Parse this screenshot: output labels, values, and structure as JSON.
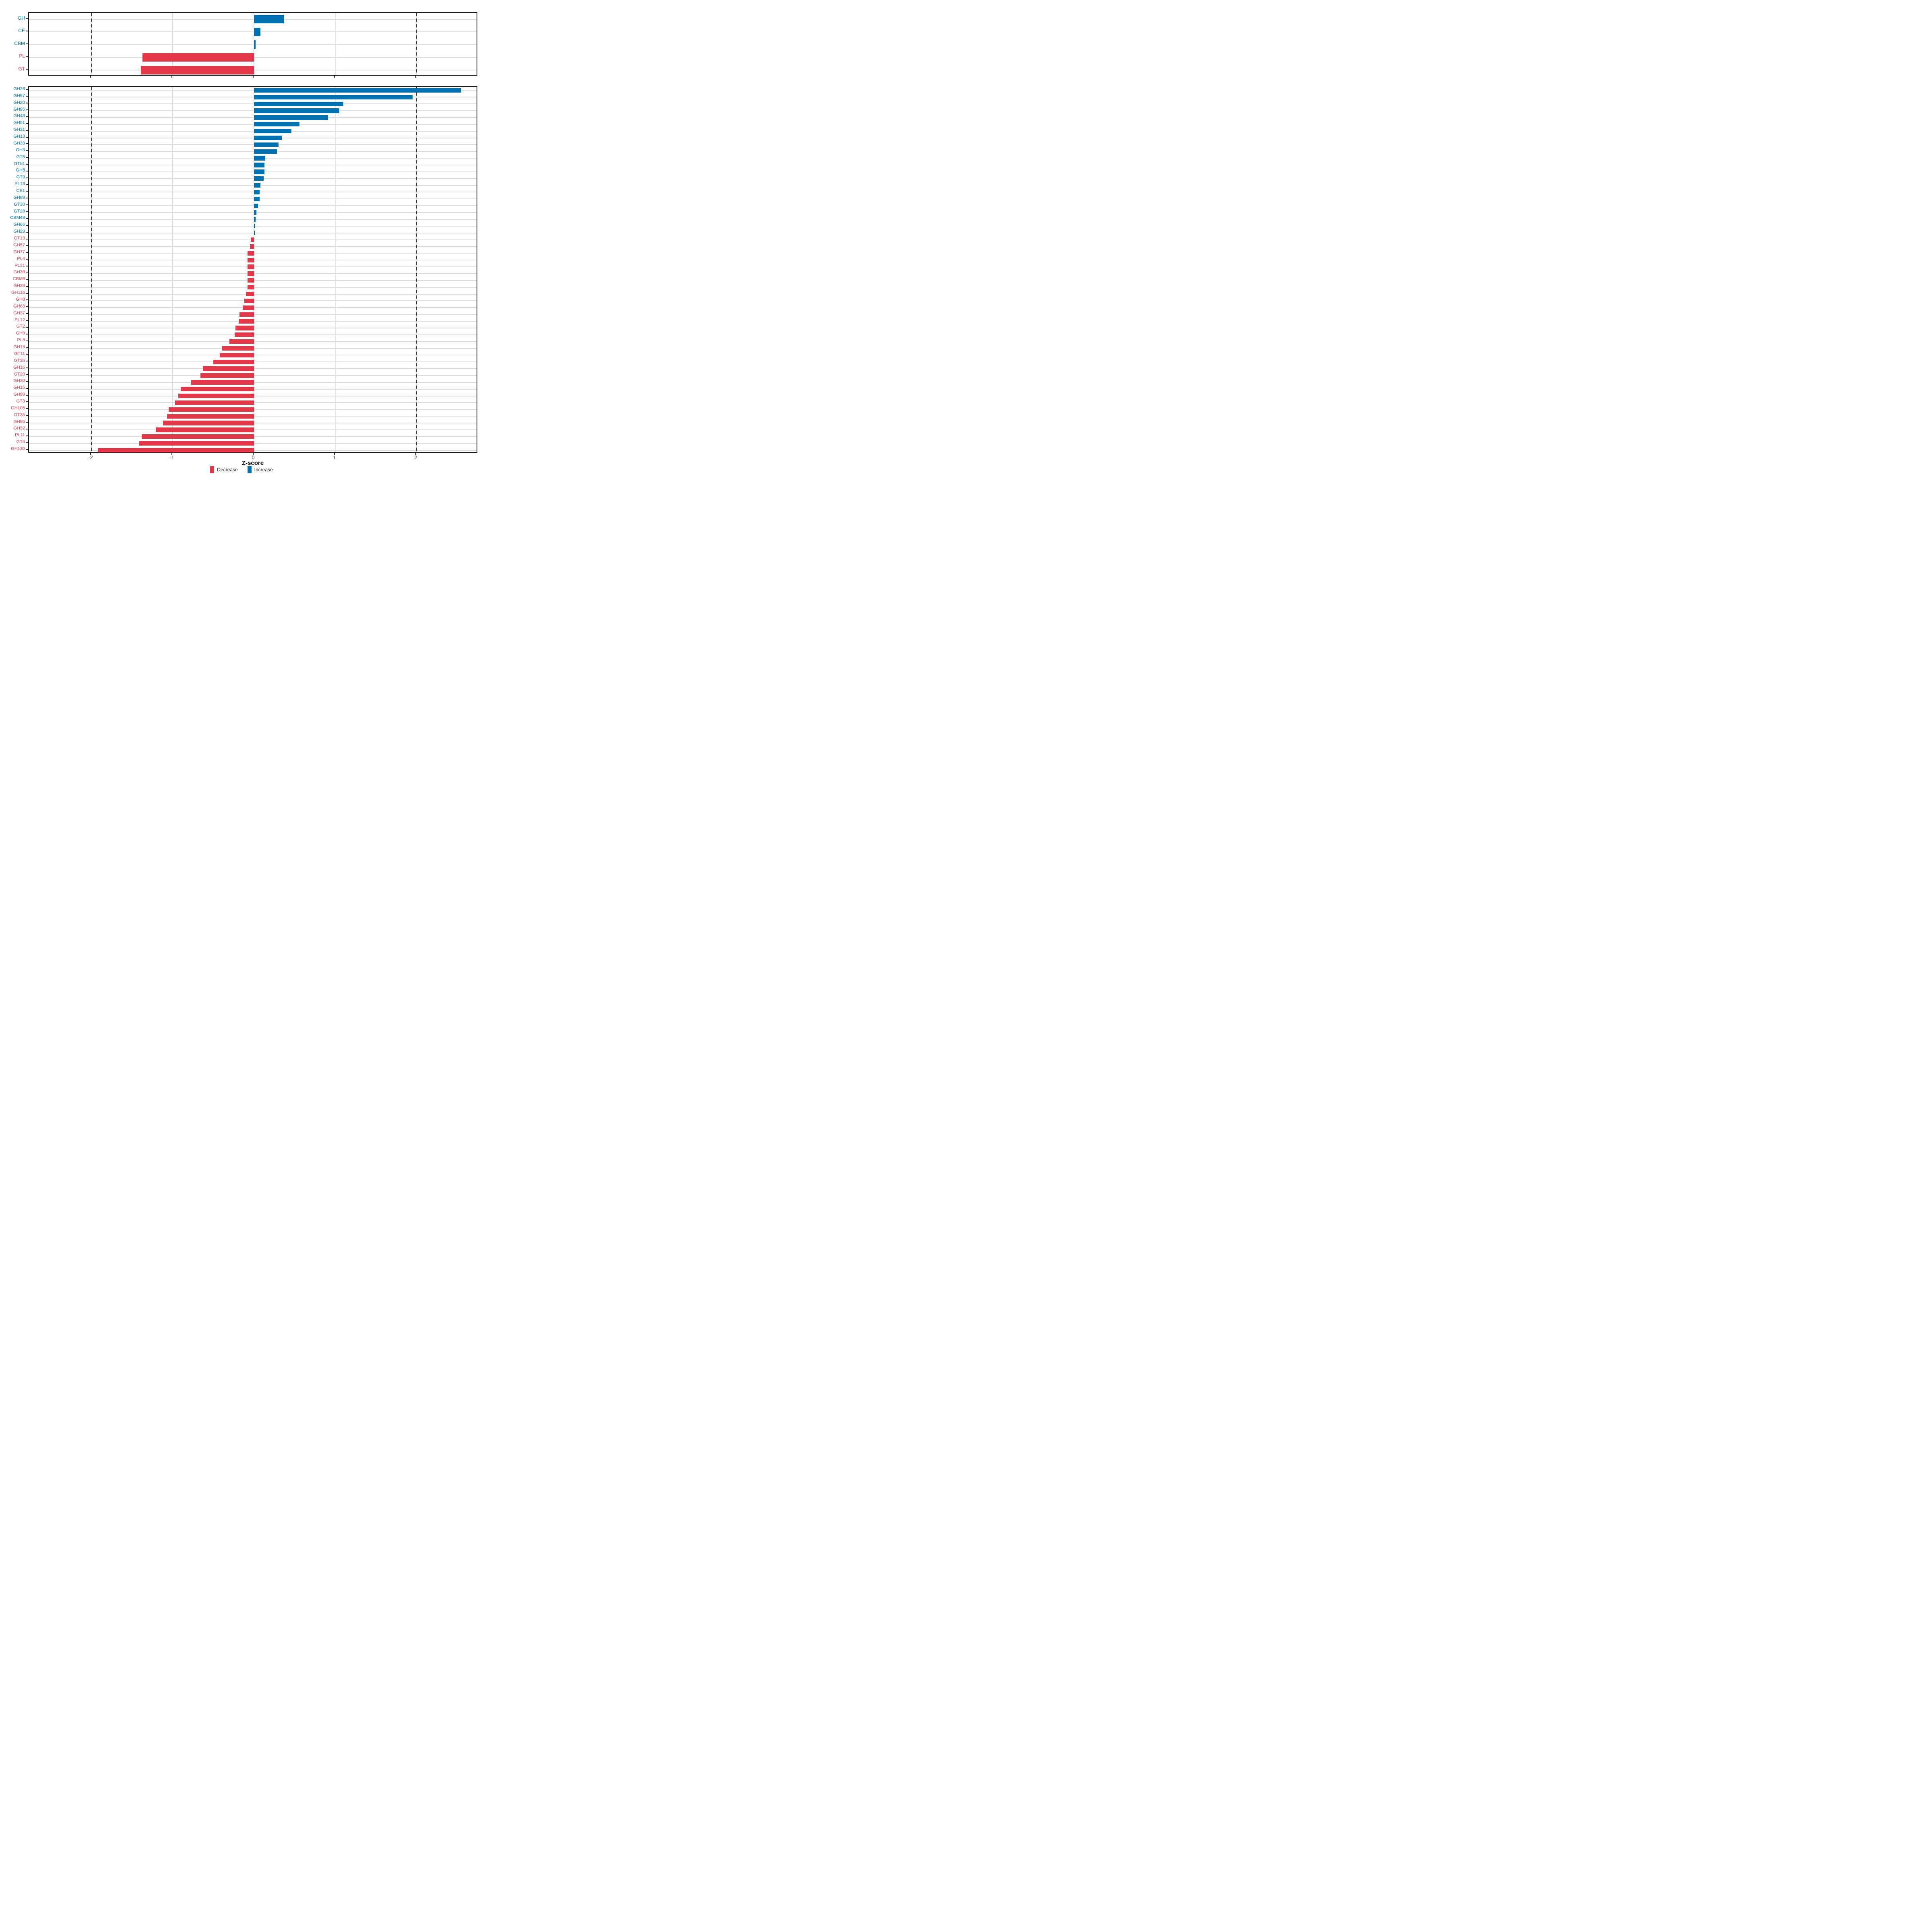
{
  "figure": {
    "background": "#ffffff"
  },
  "axis": {
    "xlabel": "Z-score",
    "tick_values": [
      -2,
      -1,
      0,
      1,
      2
    ],
    "tick_labels": [
      "-2",
      "-1",
      "0",
      "1",
      "2"
    ],
    "dashed_reference_lines": [
      -2,
      2
    ]
  },
  "legend": {
    "items": [
      {
        "label": "Decrease",
        "direction": "decrease"
      },
      {
        "label": "Increase",
        "direction": "increase"
      }
    ]
  },
  "colors": {
    "increase": "#0072B2",
    "decrease": "#E3394B",
    "grid": "#DCDCDC",
    "panel_border": "#1A1A1A",
    "dashed_line": "#3A3A3A",
    "tick": "#333333",
    "tick_label": "#404040",
    "axis_title": "#000000"
  },
  "chart_data": {
    "type": "bar",
    "orientation": "horizontal",
    "title": "",
    "xlabel": "Z-score",
    "ylabel": "",
    "xlim": [
      -2.77,
      2.75
    ],
    "grid": "on",
    "legend_position": "bottom",
    "color_rule": "positive values = Increase (blue), negative values = Decrease (red); category labels colored to match",
    "panels": [
      {
        "name": "top",
        "categories": [
          "GH",
          "CE",
          "CBM",
          "PL",
          "GT"
        ],
        "values": [
          0.37,
          0.08,
          0.02,
          -1.37,
          -1.39
        ]
      },
      {
        "name": "bottom",
        "categories": [
          "GH26",
          "GH97",
          "GH20",
          "GH95",
          "GH43",
          "GH51",
          "GH31",
          "GH13",
          "GH33",
          "GH3",
          "GT5",
          "GT51",
          "GH5",
          "GT9",
          "PL13",
          "CE1",
          "GH88",
          "GT30",
          "GT28",
          "CBM48",
          "GH66",
          "GH29",
          "GT19",
          "GH57",
          "GH77",
          "PL4",
          "PL21",
          "GH39",
          "CBM6",
          "GH38",
          "GH116",
          "GH8",
          "GH63",
          "GH37",
          "PL12",
          "GT2",
          "GH9",
          "PL8",
          "GH18",
          "GT11",
          "GT26",
          "GH16",
          "GT20",
          "GH30",
          "GH15",
          "GH99",
          "GT3",
          "GH105",
          "GT35",
          "GH65",
          "GH32",
          "PL11",
          "GT4",
          "GH130"
        ],
        "values": [
          2.55,
          1.95,
          1.1,
          1.05,
          0.91,
          0.56,
          0.46,
          0.34,
          0.3,
          0.28,
          0.14,
          0.13,
          0.13,
          0.12,
          0.08,
          0.07,
          0.07,
          0.05,
          0.03,
          0.02,
          0.015,
          0.01,
          -0.04,
          -0.05,
          -0.08,
          -0.08,
          -0.08,
          -0.08,
          -0.08,
          -0.08,
          -0.1,
          -0.12,
          -0.14,
          -0.18,
          -0.19,
          -0.23,
          -0.24,
          -0.3,
          -0.39,
          -0.42,
          -0.5,
          -0.63,
          -0.66,
          -0.77,
          -0.9,
          -0.93,
          -0.97,
          -1.05,
          -1.07,
          -1.12,
          -1.21,
          -1.38,
          -1.41,
          -1.92
        ]
      }
    ]
  }
}
